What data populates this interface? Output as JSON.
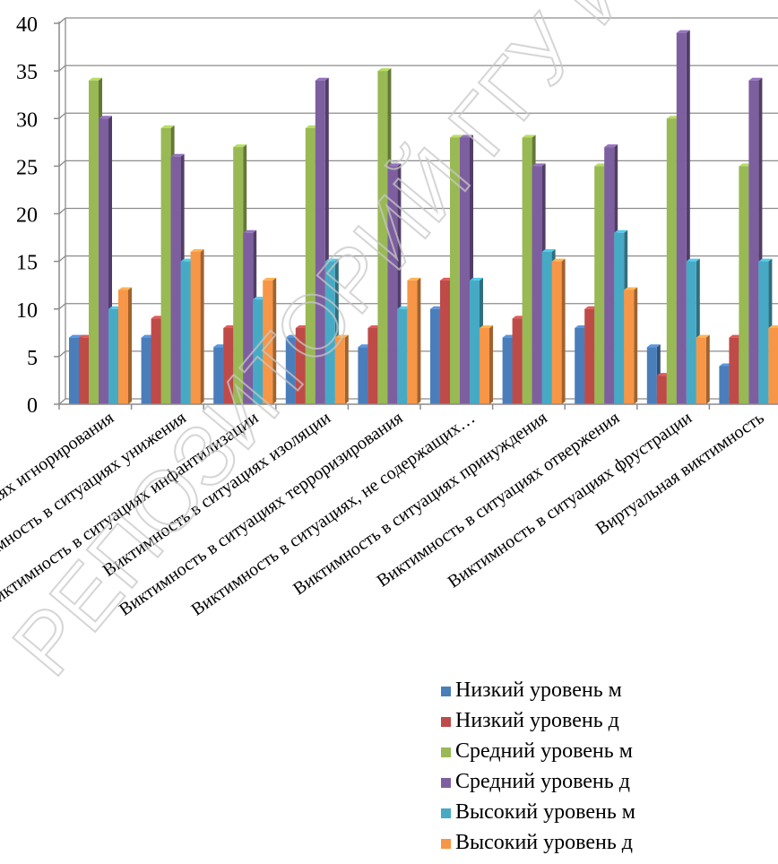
{
  "chart_data": {
    "type": "bar",
    "ylim": [
      0,
      40
    ],
    "yticks": [
      0,
      5,
      10,
      15,
      20,
      25,
      30,
      35,
      40
    ],
    "grid": true,
    "legend_position": "bottom-right",
    "categories": [
      "Виктимность в ситуациях игнорирования",
      "Виктимность в ситуациях унижения",
      "Виктимность в ситуациях инфантилизации",
      "Виктимность в ситуациях изоляции",
      "Виктимность в ситуациях терроризирования",
      "Виктимность в ситуациях, не содержащих…",
      "Виктимность в ситуациях принуждения",
      "Виктимность в ситуациях отвержения",
      "Виктимность в ситуациях фрустрации",
      "Виртуальная виктимность"
    ],
    "series": [
      {
        "name": "Низкий уровень м",
        "color": "#4a7ebb",
        "values": [
          7,
          7,
          6,
          7,
          6,
          10,
          7,
          8,
          6,
          4
        ]
      },
      {
        "name": "Низкий уровень д",
        "color": "#be4b48",
        "values": [
          7,
          9,
          8,
          8,
          8,
          13,
          9,
          10,
          3,
          7
        ]
      },
      {
        "name": "Средний уровень м",
        "color": "#98b954",
        "values": [
          34,
          29,
          27,
          29,
          35,
          28,
          28,
          25,
          30,
          25
        ]
      },
      {
        "name": "Средний уровень д",
        "color": "#7d5fa0",
        "values": [
          30,
          26,
          18,
          34,
          25,
          28,
          25,
          27,
          39,
          34
        ]
      },
      {
        "name": "Высокий уровень м",
        "color": "#46aac5",
        "values": [
          10,
          15,
          11,
          15,
          10,
          13,
          16,
          18,
          15,
          15
        ]
      },
      {
        "name": "Высокий уровень д",
        "color": "#f79646",
        "values": [
          12,
          16,
          13,
          7,
          13,
          8,
          15,
          12,
          7,
          8
        ]
      }
    ]
  },
  "watermark": {
    "text": "РЕПОЗИТОРИЙ ГГУ ИМЕНИ Ф.",
    "color": "#c8c8c8"
  }
}
